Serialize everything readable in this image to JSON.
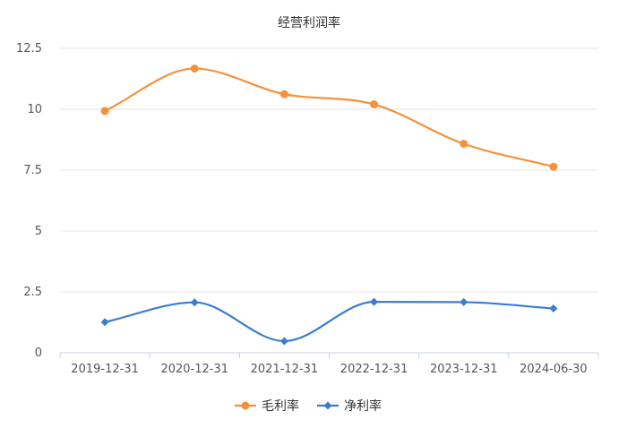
{
  "chart_data": {
    "type": "line",
    "title": "经营利润率",
    "categories": [
      "2019-12-31",
      "2020-12-31",
      "2021-12-31",
      "2022-12-31",
      "2023-12-31",
      "2024-06-30"
    ],
    "series": [
      {
        "name": "毛利率",
        "values": [
          9.93,
          11.67,
          10.62,
          10.2,
          8.58,
          7.64
        ],
        "color": "#f5913b",
        "marker": "circle"
      },
      {
        "name": "净利率",
        "values": [
          1.26,
          2.07,
          0.48,
          2.09,
          2.08,
          1.82
        ],
        "color": "#3a7dd0",
        "marker": "diamond"
      }
    ],
    "y_ticks": [
      "0",
      "2.5",
      "5",
      "7.5",
      "10",
      "12.5"
    ],
    "ylim": [
      0,
      12.5
    ],
    "grid": true,
    "smooth": true,
    "legend_position": "bottom-center"
  }
}
